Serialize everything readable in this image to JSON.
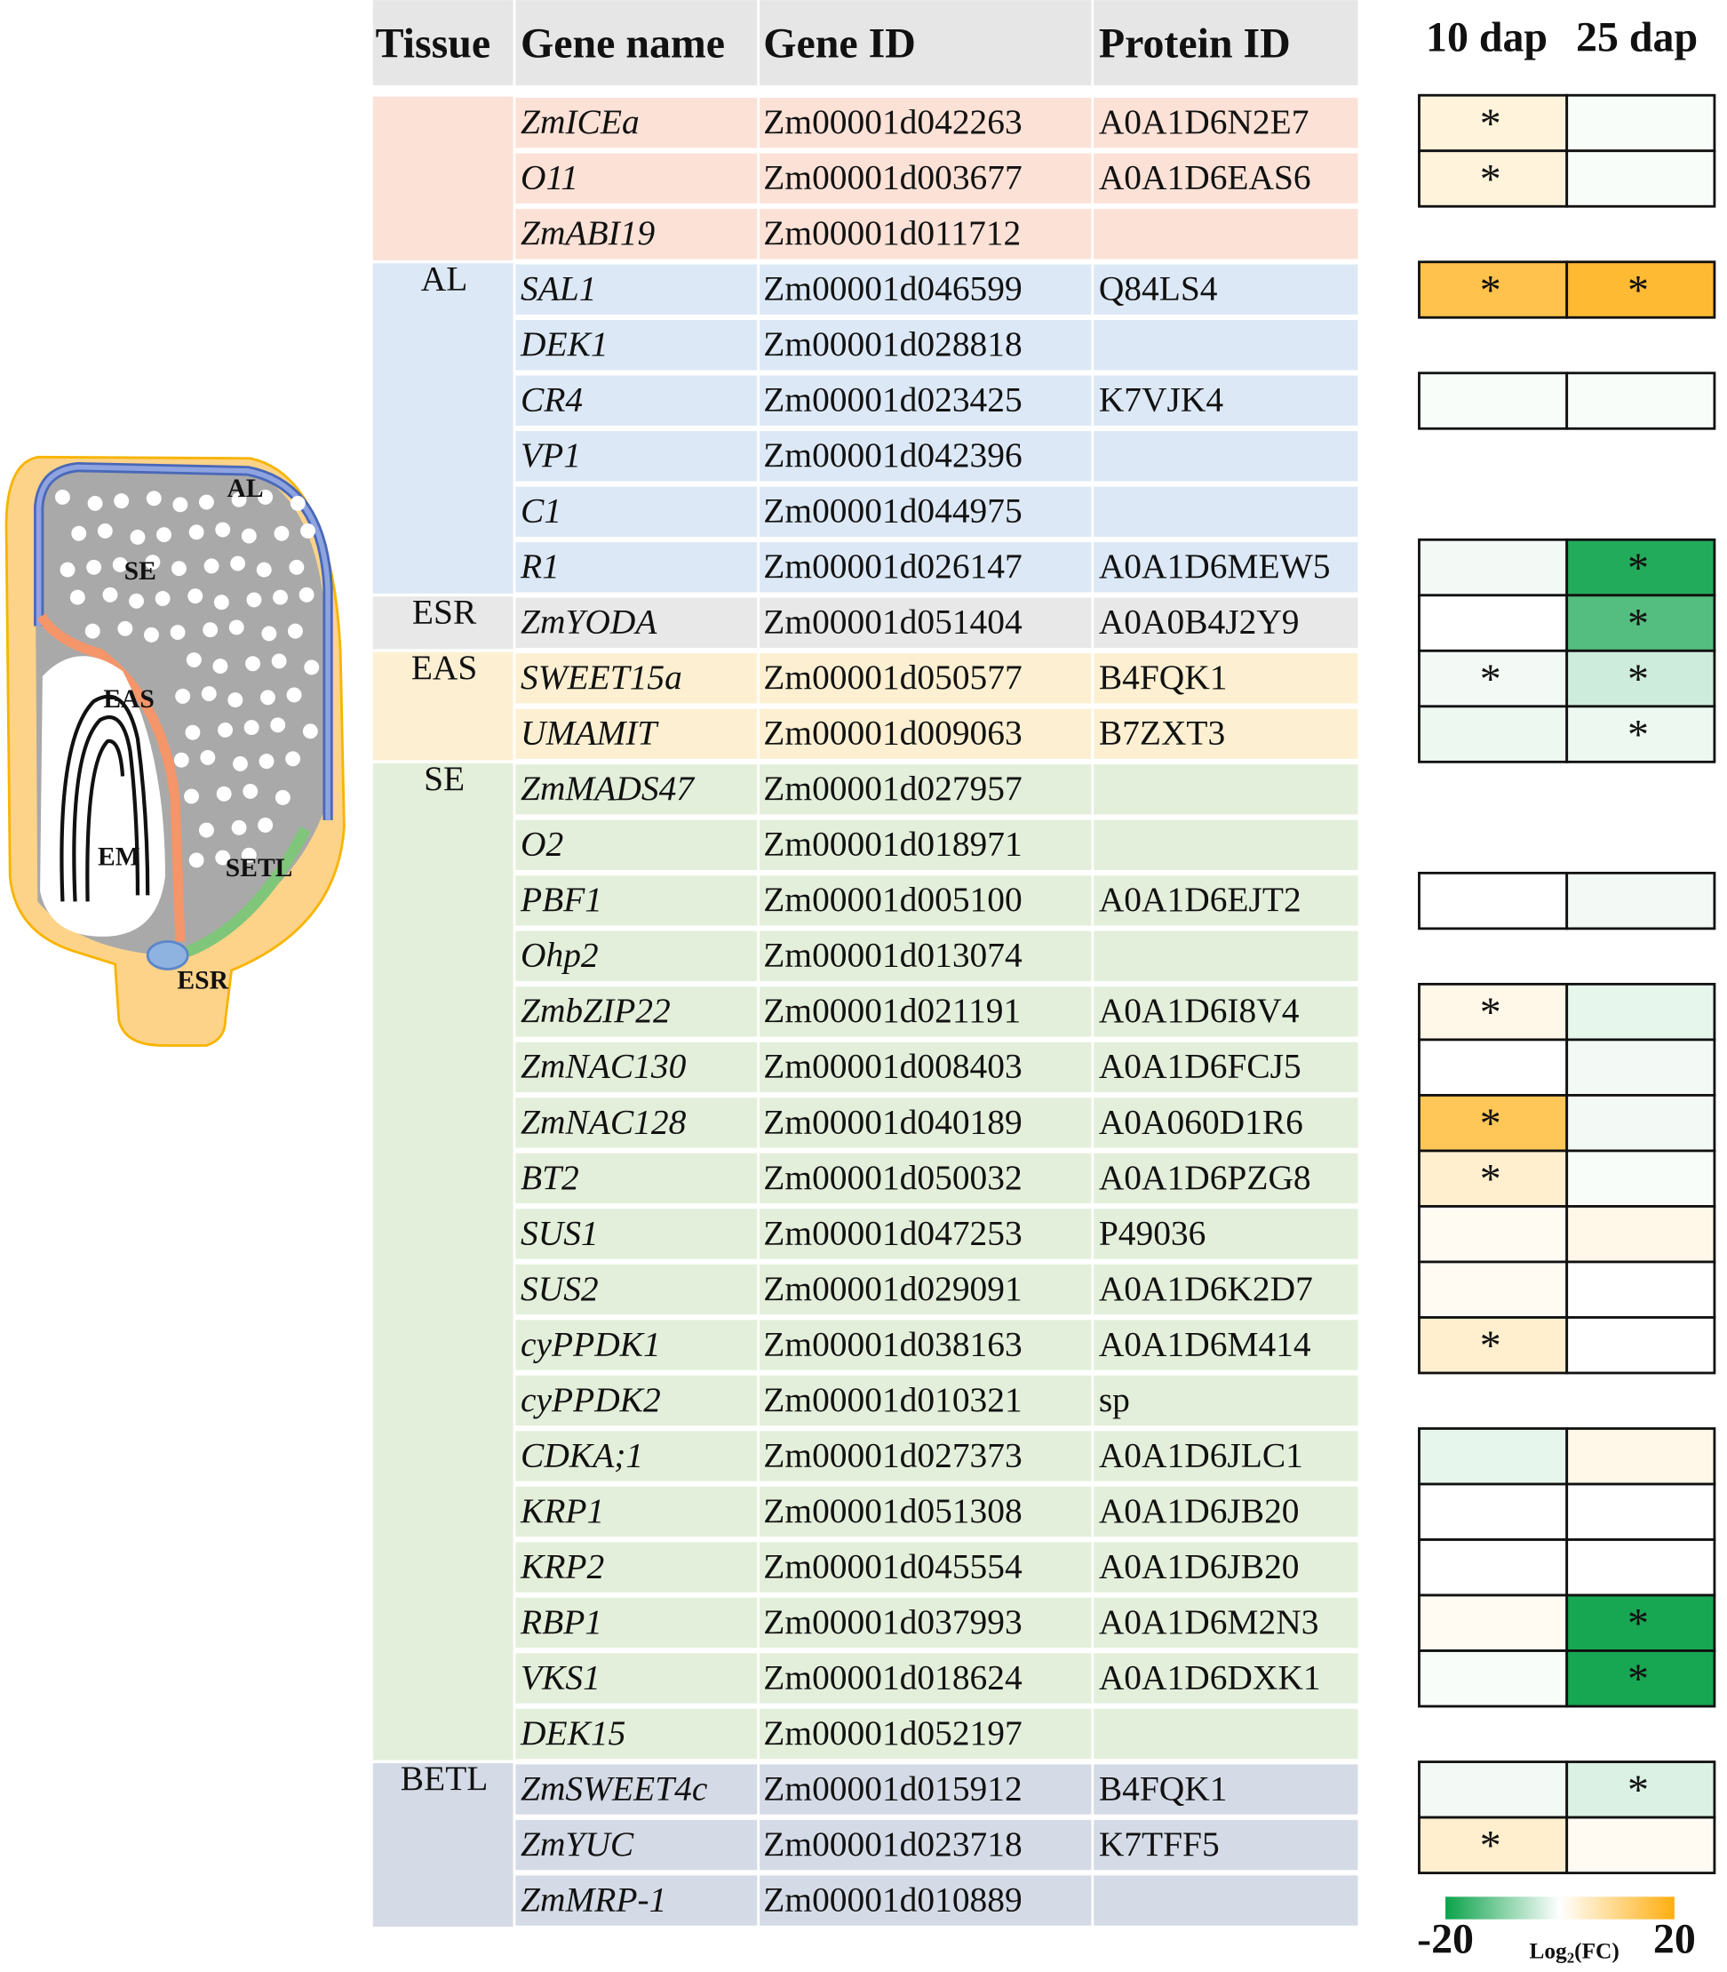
{
  "diagram": {
    "labels": [
      "AL",
      "SE",
      "EAS",
      "EM",
      "SETL",
      "ESR"
    ]
  },
  "table": {
    "headers": [
      "Tissue",
      "Gene name",
      "Gene ID",
      "Protein ID"
    ],
    "groups": [
      {
        "tissue": null,
        "color": "#fbe1d6",
        "rows": [
          {
            "gene": "ZmICEa",
            "gene_id": "Zm00001d042263",
            "protein_id": "A0A1D6N2E7",
            "fc": [
              3,
              -0.5
            ],
            "stars": [
              "*",
              null
            ]
          },
          {
            "gene": "O11",
            "gene_id": "Zm00001d003677",
            "protein_id": "A0A1D6EAS6",
            "fc": [
              3,
              -0.5
            ],
            "stars": [
              "*",
              null
            ]
          },
          {
            "gene": "ZmABI19",
            "gene_id": "Zm00001d011712",
            "protein_id": null,
            "fc": null,
            "stars": null
          }
        ]
      },
      {
        "tissue": "AL",
        "color": "#dce8f5",
        "rows": [
          {
            "gene": "SAL1",
            "gene_id": "Zm00001d046599",
            "protein_id": "Q84LS4",
            "fc": [
              15,
              17
            ],
            "stars": [
              "*",
              "*"
            ]
          },
          {
            "gene": "DEK1",
            "gene_id": "Zm00001d028818",
            "protein_id": null,
            "fc": null,
            "stars": null
          },
          {
            "gene": "CR4",
            "gene_id": "Zm00001d023425",
            "protein_id": "K7VJK4",
            "fc": [
              -0.5,
              -0.5
            ],
            "stars": [
              null,
              null
            ]
          },
          {
            "gene": "VP1",
            "gene_id": "Zm00001d042396",
            "protein_id": null,
            "fc": null,
            "stars": null
          },
          {
            "gene": "C1",
            "gene_id": "Zm00001d044975",
            "protein_id": null,
            "fc": null,
            "stars": null
          },
          {
            "gene": "R1",
            "gene_id": "Zm00001d026147",
            "protein_id": "A0A1D6MEW5",
            "fc": [
              -1,
              -18
            ],
            "stars": [
              null,
              "*"
            ]
          }
        ]
      },
      {
        "tissue": "ESR",
        "color": "#e8e8e8",
        "rows": [
          {
            "gene": "ZmYODA",
            "gene_id": "Zm00001d051404",
            "protein_id": "A0A0B4J2Y9",
            "fc": [
              0,
              -14
            ],
            "stars": [
              null,
              "*"
            ]
          }
        ]
      },
      {
        "tissue": "EAS",
        "color": "#fdf0d2",
        "rows": [
          {
            "gene": "SWEET15a",
            "gene_id": "Zm00001d050577",
            "protein_id": "B4FQK1",
            "fc": [
              -1,
              -4
            ],
            "stars": [
              "*",
              "*"
            ]
          },
          {
            "gene": "UMAMIT",
            "gene_id": "Zm00001d009063",
            "protein_id": "B7ZXT3",
            "fc": [
              -1.5,
              -1.5
            ],
            "stars": [
              null,
              "*"
            ]
          }
        ]
      },
      {
        "tissue": "SE",
        "color": "#e3efda",
        "rows": [
          {
            "gene": "ZmMADS47",
            "gene_id": "Zm00001d027957",
            "protein_id": null,
            "fc": null,
            "stars": null
          },
          {
            "gene": "O2",
            "gene_id": "Zm00001d018971",
            "protein_id": null,
            "fc": null,
            "stars": null
          },
          {
            "gene": "PBF1",
            "gene_id": "Zm00001d005100",
            "protein_id": "A0A1D6EJT2",
            "fc": [
              0,
              -1
            ],
            "stars": [
              null,
              null
            ]
          },
          {
            "gene": "Ohp2",
            "gene_id": "Zm00001d013074",
            "protein_id": null,
            "fc": null,
            "stars": null
          },
          {
            "gene": "ZmbZIP22",
            "gene_id": "Zm00001d021191",
            "protein_id": "A0A1D6I8V4",
            "fc": [
              2,
              -2
            ],
            "stars": [
              "*",
              null
            ]
          },
          {
            "gene": "ZmNAC130",
            "gene_id": "Zm00001d008403",
            "protein_id": "A0A1D6FCJ5",
            "fc": [
              0,
              -1
            ],
            "stars": [
              null,
              null
            ]
          },
          {
            "gene": "ZmNAC128",
            "gene_id": "Zm00001d040189",
            "protein_id": "A0A060D1R6",
            "fc": [
              14,
              -1
            ],
            "stars": [
              "*",
              null
            ]
          },
          {
            "gene": "BT2",
            "gene_id": "Zm00001d050032",
            "protein_id": "A0A1D6PZG8",
            "fc": [
              4,
              -0.5
            ],
            "stars": [
              "*",
              null
            ]
          },
          {
            "gene": "SUS1",
            "gene_id": "Zm00001d047253",
            "protein_id": "P49036",
            "fc": [
              1,
              2
            ],
            "stars": [
              null,
              null
            ]
          },
          {
            "gene": "SUS2",
            "gene_id": "Zm00001d029091",
            "protein_id": "A0A1D6K2D7",
            "fc": [
              1,
              0
            ],
            "stars": [
              null,
              null
            ]
          },
          {
            "gene": "cyPPDK1",
            "gene_id": "Zm00001d038163",
            "protein_id": "A0A1D6M414",
            "fc": [
              4,
              0
            ],
            "stars": [
              "*",
              null
            ]
          },
          {
            "gene": "cyPPDK2",
            "gene_id": "Zm00001d010321",
            "protein_id": "sp",
            "fc": null,
            "stars": null
          },
          {
            "gene": "CDKA;1",
            "gene_id": "Zm00001d027373",
            "protein_id": "A0A1D6JLC1",
            "fc": [
              -2,
              2
            ],
            "stars": [
              null,
              null
            ]
          },
          {
            "gene": "KRP1",
            "gene_id": "Zm00001d051308",
            "protein_id": "A0A1D6JB20",
            "fc": [
              0,
              0
            ],
            "stars": [
              null,
              null
            ]
          },
          {
            "gene": "KRP2",
            "gene_id": "Zm00001d045554",
            "protein_id": "A0A1D6JB20",
            "fc": [
              0,
              0
            ],
            "stars": [
              null,
              null
            ]
          },
          {
            "gene": "RBP1",
            "gene_id": "Zm00001d037993",
            "protein_id": "A0A1D6M2N3",
            "fc": [
              1,
              -19
            ],
            "stars": [
              null,
              "*"
            ]
          },
          {
            "gene": "VKS1",
            "gene_id": "Zm00001d018624",
            "protein_id": "A0A1D6DXK1",
            "fc": [
              -0.5,
              -19
            ],
            "stars": [
              null,
              "*"
            ]
          },
          {
            "gene": "DEK15",
            "gene_id": "Zm00001d052197",
            "protein_id": null,
            "fc": null,
            "stars": null
          }
        ]
      },
      {
        "tissue": "BETL",
        "color": "#d5dbe6",
        "rows": [
          {
            "gene": "ZmSWEET4c",
            "gene_id": "Zm00001d015912",
            "protein_id": "B4FQK1",
            "fc": [
              -1,
              -3
            ],
            "stars": [
              null,
              "*"
            ]
          },
          {
            "gene": "ZmYUC",
            "gene_id": "Zm00001d023718",
            "protein_id": "K7TFF5",
            "fc": [
              4,
              1
            ],
            "stars": [
              "*",
              null
            ]
          },
          {
            "gene": "ZmMRP-1",
            "gene_id": "Zm00001d010889",
            "protein_id": null,
            "fc": null,
            "stars": null
          }
        ]
      }
    ]
  },
  "heatmap": {
    "columns": [
      "10 dap",
      "25 dap"
    ],
    "colorbar": {
      "range": [
        -20,
        20
      ],
      "ticks": [
        -20,
        20
      ],
      "colors": [
        "#0ba24a",
        "#ffffff",
        "#ffae10"
      ],
      "label": "Log",
      "label_sub": "2",
      "label_rest": "(FC)"
    }
  }
}
